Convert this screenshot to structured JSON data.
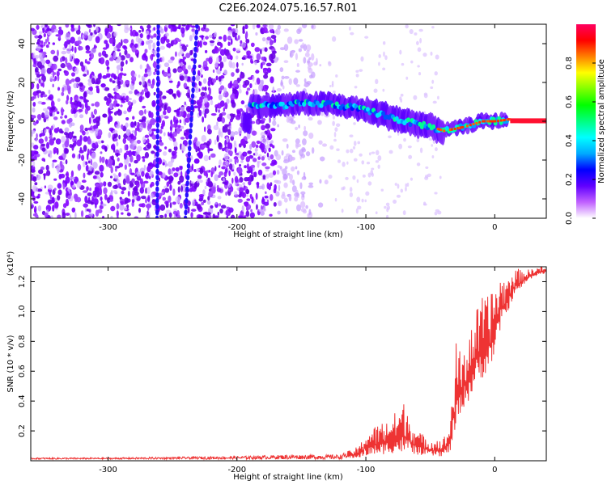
{
  "title": "C2E6.2024.075.16.57.R01",
  "chart_data": [
    {
      "type": "heatmap",
      "xlabel": "Height of straight line (km)",
      "ylabel": "Frequency (Hz)",
      "xlim": [
        -360,
        40
      ],
      "ylim": [
        -50,
        50
      ],
      "xticks": [
        -300,
        -200,
        -100,
        0
      ],
      "yticks": [
        -40,
        -20,
        0,
        20,
        40
      ],
      "colorbar": {
        "label": "Normalized spectral amplitude",
        "range": [
          0.0,
          1.0
        ],
        "ticks": [
          "0.0",
          "0.2",
          "0.4",
          "0.6",
          "0.8"
        ],
        "colors": [
          "#ffffff",
          "#c060ff",
          "#6000ff",
          "#0000ff",
          "#00aaff",
          "#00ffff",
          "#00ff80",
          "#00ff00",
          "#80ff00",
          "#ffff00",
          "#ff8000",
          "#ff0000",
          "#ff0060"
        ]
      },
      "ridge": {
        "x": [
          -190,
          -170,
          -150,
          -130,
          -110,
          -90,
          -70,
          -55,
          -40,
          -25,
          -10,
          0,
          10,
          20,
          40
        ],
        "y": [
          8,
          8,
          9,
          9,
          7,
          4,
          0,
          -2,
          -5,
          -3,
          0,
          0,
          1,
          0,
          0
        ]
      },
      "vertical_streaks_x": [
        -262,
        -240
      ]
    },
    {
      "type": "line",
      "xlabel": "Height of straight line (km)",
      "ylabel": "SNR (10 * v/v)",
      "scale_label": "(x10⁴)",
      "xlim": [
        -360,
        40
      ],
      "ylim": [
        0,
        1.3
      ],
      "xticks": [
        -300,
        -200,
        -100,
        0
      ],
      "yticks": [
        "0.2",
        "0.4",
        "0.6",
        "0.8",
        "1.0",
        "1.2"
      ],
      "series": [
        {
          "color": "#ee3333",
          "envelope": {
            "x": [
              -360,
              -300,
              -200,
              -160,
              -120,
              -105,
              -100,
              -90,
              -80,
              -70,
              -60,
              -50,
              -40,
              -35,
              -30,
              -25,
              -20,
              -15,
              -10,
              -5,
              0,
              5,
              10,
              15,
              20,
              25,
              30,
              35,
              40
            ],
            "low": [
              0.01,
              0.01,
              0.01,
              0.01,
              0.01,
              0.02,
              0.03,
              0.04,
              0.05,
              0.05,
              0.04,
              0.03,
              0.03,
              0.05,
              0.2,
              0.35,
              0.4,
              0.5,
              0.55,
              0.6,
              0.7,
              0.9,
              1.0,
              1.1,
              1.15,
              1.2,
              1.23,
              1.25,
              1.25
            ],
            "high": [
              0.02,
              0.02,
              0.03,
              0.04,
              0.04,
              0.1,
              0.2,
              0.25,
              0.3,
              0.4,
              0.2,
              0.15,
              0.15,
              0.25,
              0.8,
              0.7,
              0.9,
              1.0,
              1.1,
              1.1,
              1.2,
              1.25,
              1.22,
              1.3,
              1.28,
              1.28,
              1.29,
              1.3,
              1.3
            ]
          }
        }
      ]
    }
  ]
}
